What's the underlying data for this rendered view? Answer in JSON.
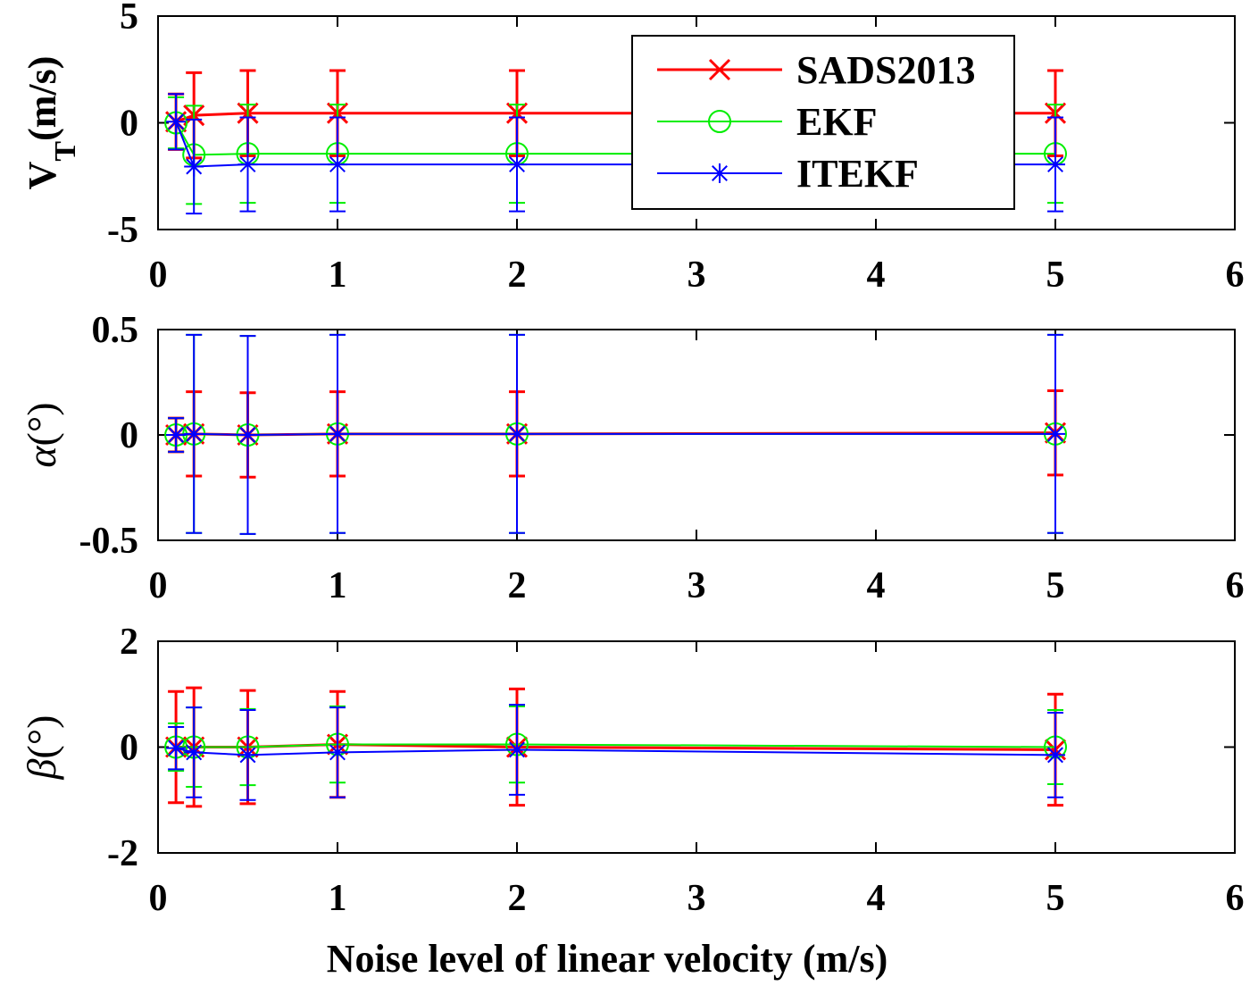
{
  "chart_data": [
    {
      "type": "line",
      "subplot": "top",
      "ylabel_main": "V",
      "ylabel_sub": "T",
      "ylabel_unit": "(m/s)",
      "xlim": [
        0,
        6
      ],
      "ylim": [
        -5,
        5
      ],
      "xticks": [
        0,
        1,
        2,
        3,
        4,
        5,
        6
      ],
      "xtick_labels": [
        "0",
        "1",
        "2",
        "3",
        "4",
        "5",
        "6"
      ],
      "yticks": [
        -5,
        0,
        5
      ],
      "ytick_labels": [
        "-5",
        "0",
        "5"
      ],
      "x": [
        0.1,
        0.2,
        0.5,
        1,
        2,
        5
      ],
      "legend": {
        "location": "top-right",
        "entries": [
          "SADS2013",
          "EKF",
          "ITEKF"
        ]
      },
      "series": [
        {
          "name": "SADS2013",
          "color": "#ff0000",
          "marker": "x",
          "values": [
            0.05,
            0.35,
            0.45,
            0.45,
            0.45,
            0.45
          ],
          "errors": [
            1.3,
            2.0,
            2.0,
            2.0,
            2.0,
            2.0
          ]
        },
        {
          "name": "EKF",
          "color": "#00ee00",
          "marker": "o",
          "values": [
            0.0,
            -1.5,
            -1.45,
            -1.45,
            -1.45,
            -1.45
          ],
          "errors": [
            1.2,
            2.3,
            2.3,
            2.3,
            2.3,
            2.3
          ]
        },
        {
          "name": "ITEKF",
          "color": "#0000ff",
          "marker": "*",
          "values": [
            0.05,
            -2.05,
            -1.95,
            -1.95,
            -1.95,
            -1.95
          ],
          "errors": [
            1.3,
            2.2,
            2.2,
            2.2,
            2.2,
            2.2
          ]
        }
      ]
    },
    {
      "type": "line",
      "subplot": "middle",
      "ylabel_symbol": "α",
      "ylabel_unit": "(°)",
      "xlim": [
        0,
        6
      ],
      "ylim": [
        -0.5,
        0.5
      ],
      "xticks": [
        0,
        1,
        2,
        3,
        4,
        5,
        6
      ],
      "xtick_labels": [
        "0",
        "1",
        "2",
        "3",
        "4",
        "5",
        "6"
      ],
      "yticks": [
        -0.5,
        0,
        0.5
      ],
      "ytick_labels": [
        "-0.5",
        "0",
        "0.5"
      ],
      "x": [
        0.1,
        0.2,
        0.5,
        1,
        2,
        5
      ],
      "series": [
        {
          "name": "SADS2013",
          "color": "#ff0000",
          "marker": "x",
          "values": [
            0.0,
            0.005,
            0.0,
            0.005,
            0.005,
            0.01
          ],
          "errors": [
            0.08,
            0.2,
            0.2,
            0.2,
            0.2,
            0.2
          ]
        },
        {
          "name": "EKF",
          "color": "#00ee00",
          "marker": "o",
          "values": [
            0.0,
            0.005,
            0.0,
            0.005,
            0.005,
            0.005
          ],
          "errors": [
            0.08,
            0.47,
            0.47,
            0.47,
            0.47,
            0.47
          ]
        },
        {
          "name": "ITEKF",
          "color": "#0000ff",
          "marker": "*",
          "values": [
            0.0,
            0.005,
            0.0,
            0.005,
            0.005,
            0.005
          ],
          "errors": [
            0.08,
            0.47,
            0.47,
            0.47,
            0.47,
            0.47
          ]
        }
      ]
    },
    {
      "type": "line",
      "subplot": "bottom",
      "ylabel_symbol": "β",
      "ylabel_unit": "(°)",
      "xlabel": "Noise level of linear velocity (m/s)",
      "xlim": [
        0,
        6
      ],
      "ylim": [
        -2,
        2
      ],
      "xticks": [
        0,
        1,
        2,
        3,
        4,
        5,
        6
      ],
      "xtick_labels": [
        "0",
        "1",
        "2",
        "3",
        "4",
        "5",
        "6"
      ],
      "yticks": [
        -2,
        0,
        2
      ],
      "ytick_labels": [
        "-2",
        "0",
        "2"
      ],
      "x": [
        0.1,
        0.2,
        0.5,
        1,
        2,
        5
      ],
      "series": [
        {
          "name": "SADS2013",
          "color": "#ff0000",
          "marker": "x",
          "values": [
            0.0,
            0.0,
            0.0,
            0.05,
            0.0,
            -0.05
          ],
          "errors": [
            1.05,
            1.12,
            1.07,
            1.0,
            1.1,
            1.05
          ]
        },
        {
          "name": "EKF",
          "color": "#00ee00",
          "marker": "o",
          "values": [
            0.0,
            0.0,
            0.0,
            0.05,
            0.05,
            0.0
          ],
          "errors": [
            0.45,
            0.75,
            0.72,
            0.72,
            0.72,
            0.7
          ]
        },
        {
          "name": "ITEKF",
          "color": "#0000ff",
          "marker": "*",
          "values": [
            -0.02,
            -0.1,
            -0.15,
            -0.1,
            -0.05,
            -0.15
          ],
          "errors": [
            0.4,
            0.85,
            0.85,
            0.85,
            0.85,
            0.8
          ]
        }
      ]
    }
  ]
}
